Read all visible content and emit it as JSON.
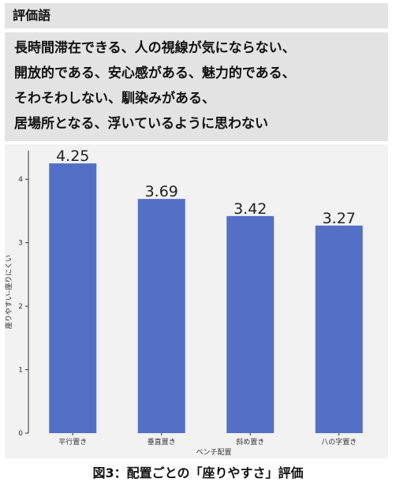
{
  "header": {
    "title": "評価語"
  },
  "evaluation_terms": [
    "長時間滞在できる、人の視線が気にならない、",
    "開放的である、安心感がある、魅力的である、",
    "そわそわしない、馴染みがある、",
    "居場所となる、浮いているように思わない"
  ],
  "caption": "図3：配置ごとの「座りやすさ」評価",
  "chart_data": {
    "type": "bar",
    "categories": [
      "平行置き",
      "垂直置き",
      "斜め置き",
      "八の字置き"
    ],
    "values": [
      4.25,
      3.69,
      3.42,
      3.27
    ],
    "data_labels": [
      "4.25",
      "3.69",
      "3.42",
      "3.27"
    ],
    "xlabel": "ベンチ配置",
    "ylabel": "座りやすい–座りにくい",
    "ylim": [
      0,
      4.45
    ],
    "yticks": [
      0,
      1,
      2,
      3,
      4
    ],
    "grid": false,
    "colors": {
      "bar": "#5470c6",
      "background": "#f2f2f2"
    }
  }
}
